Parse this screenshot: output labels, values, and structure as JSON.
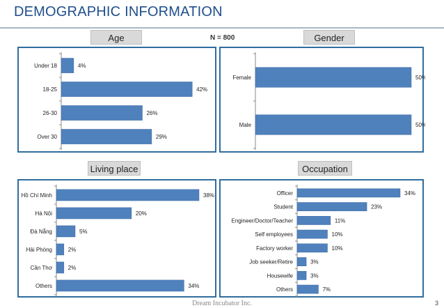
{
  "page": {
    "title": "DEMOGRAPHIC INFORMATION",
    "n_label": "N = 800",
    "footer": "Dream Incubator Inc.",
    "page_number": "3",
    "colors": {
      "bar": "#4f81bd",
      "bar_edge": "#3e6aa0",
      "panel_border": "#2f6d9e",
      "title": "#1f4e8c"
    }
  },
  "chart_data": [
    {
      "id": "age",
      "type": "bar",
      "orientation": "horizontal",
      "title": "Age",
      "categories": [
        "Under 18",
        "18-25",
        "26-30",
        "Over 30"
      ],
      "values": [
        4,
        42,
        26,
        29
      ],
      "labels": [
        "4%",
        "42%",
        "26%",
        "29%"
      ],
      "xlim": [
        0,
        50
      ]
    },
    {
      "id": "gender",
      "type": "bar",
      "orientation": "horizontal",
      "title": "Gender",
      "categories": [
        "Female",
        "Male"
      ],
      "values": [
        50,
        50
      ],
      "labels": [
        "50%",
        "50%"
      ],
      "xlim": [
        0,
        50
      ]
    },
    {
      "id": "living",
      "type": "bar",
      "orientation": "horizontal",
      "title": "Living place",
      "categories": [
        "Hồ Chí Minh",
        "Hà Nội",
        "Đà Nẵng",
        "Hải Phòng",
        "Cần Thơ",
        "Others"
      ],
      "values": [
        38,
        20,
        5,
        2,
        2,
        34
      ],
      "labels": [
        "38%",
        "20%",
        "5%",
        "2%",
        "2%",
        "34%"
      ],
      "xlim": [
        0,
        38
      ]
    },
    {
      "id": "occupation",
      "type": "bar",
      "orientation": "horizontal",
      "title": "Occupation",
      "categories": [
        "Officer",
        "Student",
        "Engineer/Doctor/Teacher",
        "Self employees",
        "Factory worker",
        "Job seeker/Retire",
        "Housewife",
        "Others"
      ],
      "values": [
        34,
        23,
        11,
        10,
        10,
        3,
        3,
        7
      ],
      "labels": [
        "34%",
        "23%",
        "11%",
        "10%",
        "10%",
        "3%",
        "3%",
        "7%"
      ],
      "xlim": [
        0,
        34
      ]
    }
  ]
}
